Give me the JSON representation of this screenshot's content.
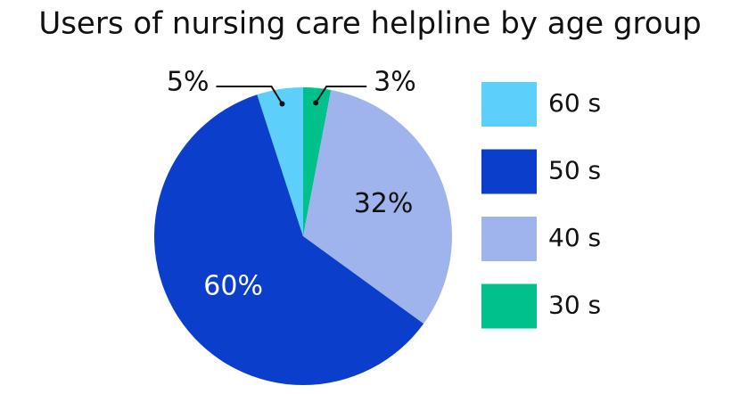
{
  "chart_data": {
    "type": "pie",
    "title": "Users of nursing care helpline by age group",
    "categories": [
      "30 s",
      "40 s",
      "50 s",
      "60 s"
    ],
    "values": [
      3,
      32,
      60,
      5
    ],
    "value_labels": [
      "3%",
      "32%",
      "60%",
      "5%"
    ],
    "colors": [
      "#00c08b",
      "#9fb4ec",
      "#0b3fcb",
      "#5dcffb"
    ],
    "legend": "right"
  }
}
